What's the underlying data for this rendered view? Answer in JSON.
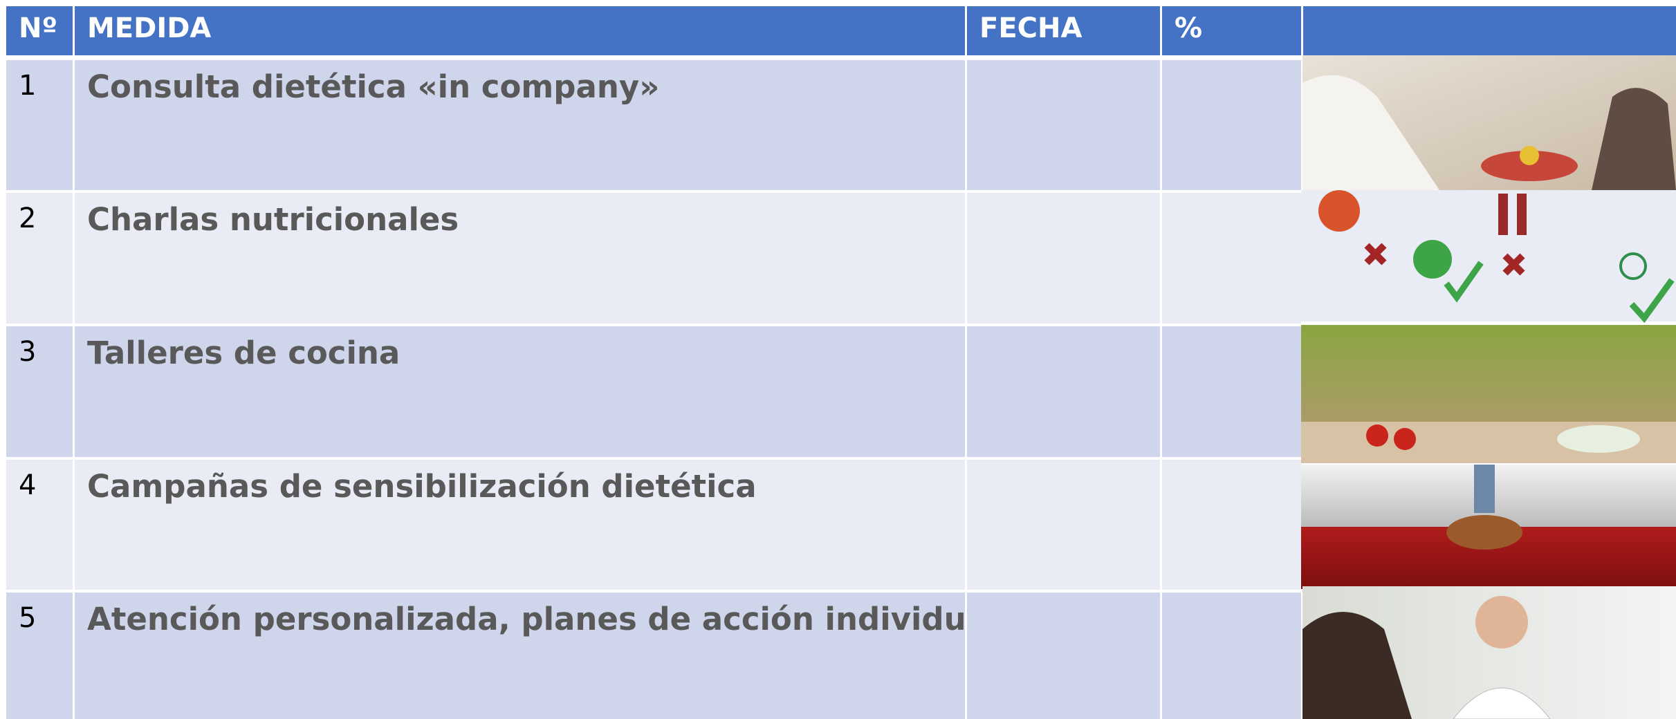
{
  "table": {
    "header": [
      "Nº",
      "MEDIDA",
      "FECHA",
      "%"
    ],
    "rows": [
      [
        "1",
        "Consulta dietética «in company»"
      ],
      [
        "2",
        "Charlas nutricionales"
      ],
      [
        "3",
        "Talleres de cocina"
      ],
      [
        "4",
        "Campañas de sensibilización dietética"
      ],
      [
        "5",
        "Atención personalizada, planes de acción individuales"
      ]
    ]
  }
}
